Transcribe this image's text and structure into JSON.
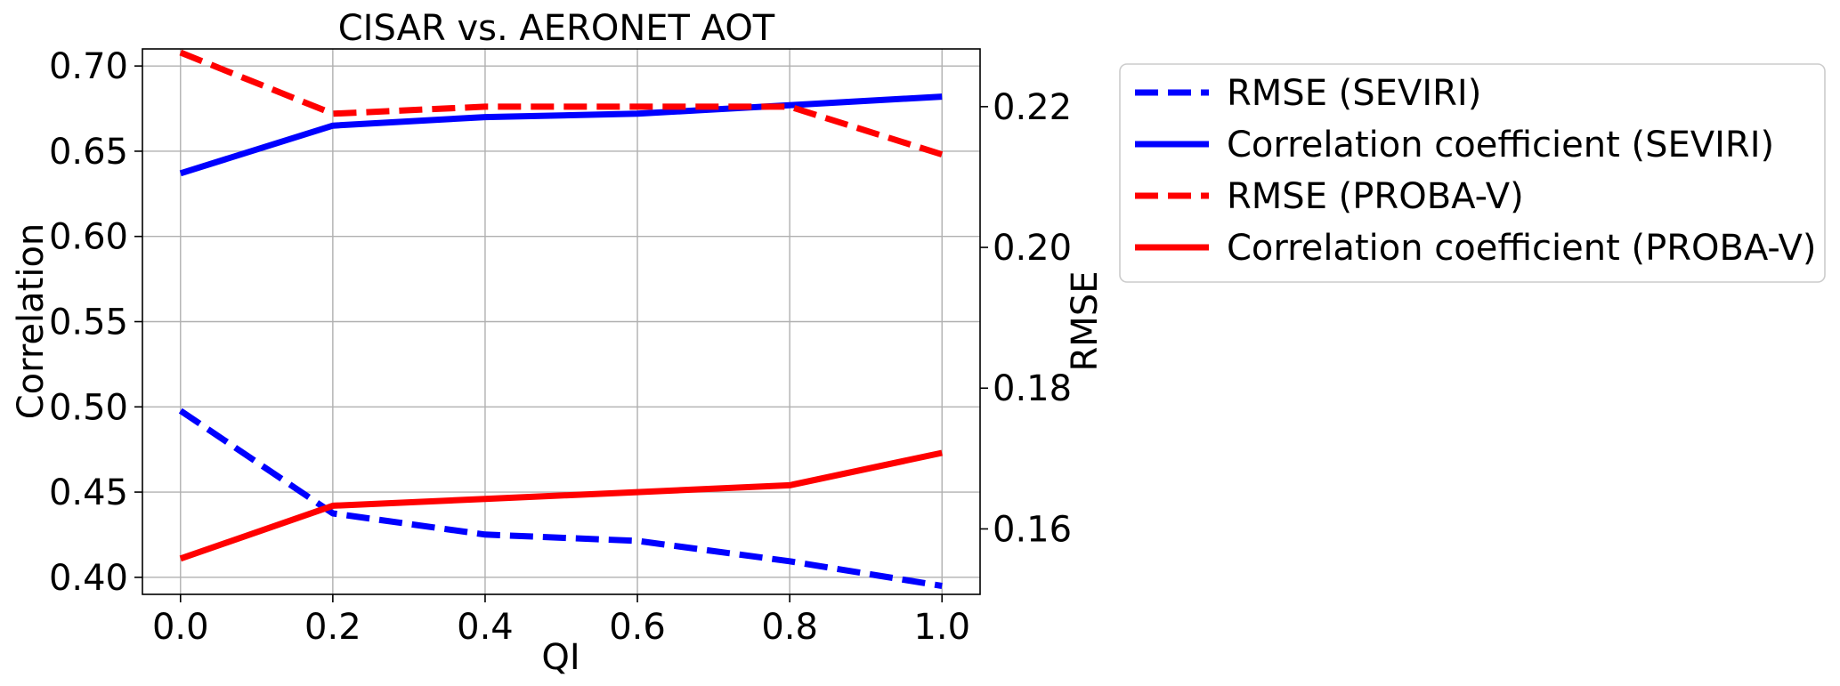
{
  "chart_data": {
    "type": "line",
    "title": "CISAR vs. AERONET AOT",
    "xlabel": "QI",
    "ylabel_left": "Correlation",
    "ylabel_right": "RMSE",
    "x": [
      0.0,
      0.2,
      0.4,
      0.6,
      0.8,
      1.0
    ],
    "x_ticks": [
      "0.0",
      "0.2",
      "0.4",
      "0.6",
      "0.8",
      "1.0"
    ],
    "xlim": [
      -0.05,
      1.05
    ],
    "ylim_left": [
      0.39,
      0.71
    ],
    "ylim_right": [
      0.1507,
      0.2282
    ],
    "y_left_ticks": [
      "0.40",
      "0.45",
      "0.50",
      "0.55",
      "0.60",
      "0.65",
      "0.70"
    ],
    "y_right_ticks": [
      "0.16",
      "0.18",
      "0.20",
      "0.22"
    ],
    "grid": true,
    "legend_position": "outside right, top",
    "series": [
      {
        "name": "RMSE (SEVIRI)",
        "axis": "right",
        "style": "dashed",
        "color": "#0000ff",
        "values": [
          0.1768,
          0.1622,
          0.1592,
          0.1583,
          0.1554,
          0.1519
        ]
      },
      {
        "name": "Correlation coefficient (SEVIRI)",
        "axis": "left",
        "style": "solid",
        "color": "#0000ff",
        "values": [
          0.637,
          0.665,
          0.67,
          0.672,
          0.677,
          0.682
        ]
      },
      {
        "name": "RMSE (PROBA-V)",
        "axis": "right",
        "style": "dashed",
        "color": "#ff0000",
        "values": [
          0.2277,
          0.219,
          0.22,
          0.22,
          0.22,
          0.2132
        ]
      },
      {
        "name": "Correlation coefficient (PROBA-V)",
        "axis": "left",
        "style": "solid",
        "color": "#ff0000",
        "values": [
          0.411,
          0.442,
          0.446,
          0.45,
          0.454,
          0.473
        ]
      }
    ]
  }
}
